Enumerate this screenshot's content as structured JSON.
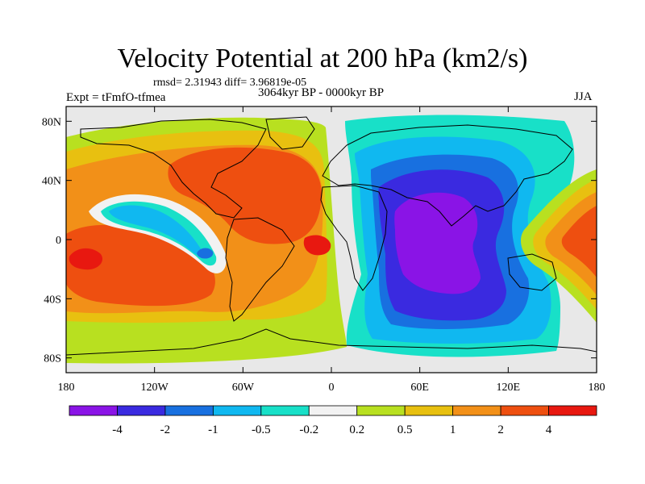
{
  "figure": {
    "title": "Velocity Potential at 200 hPa (km2/s)",
    "stats": "rmsd= 2.31943  diff= 3.96819e-05",
    "experiment": "Expt = tFmfO-tfmea",
    "period": "3064kyr BP - 0000kyr BP",
    "season": "JJA"
  },
  "map": {
    "projection": "cylindrical-equidistant",
    "lon_range": [
      -180,
      180
    ],
    "lat_range": [
      -90,
      90
    ],
    "x_ticks": [
      {
        "value": -180,
        "label": "180"
      },
      {
        "value": -120,
        "label": "120W"
      },
      {
        "value": -60,
        "label": "60W"
      },
      {
        "value": 0,
        "label": "0"
      },
      {
        "value": 60,
        "label": "60E"
      },
      {
        "value": 120,
        "label": "120E"
      },
      {
        "value": 180,
        "label": "180"
      }
    ],
    "y_ticks": [
      {
        "value": 80,
        "label": "80N"
      },
      {
        "value": 40,
        "label": "40N"
      },
      {
        "value": 0,
        "label": "0"
      },
      {
        "value": -40,
        "label": "40S"
      },
      {
        "value": -80,
        "label": "80S"
      }
    ],
    "missing_color": "#e8e8e8"
  },
  "colorbar": {
    "colors": [
      "#8a14e6",
      "#3a2ae0",
      "#1870e0",
      "#10b8f0",
      "#18e0c8",
      "#f2f2f2",
      "#b8e020",
      "#e8c010",
      "#f29018",
      "#ee4f10",
      "#e81810"
    ],
    "labels": [
      "-4",
      "-2",
      "-1",
      "-0.5",
      "-0.2",
      "0.2",
      "0.5",
      "1",
      "2",
      "4"
    ]
  }
}
